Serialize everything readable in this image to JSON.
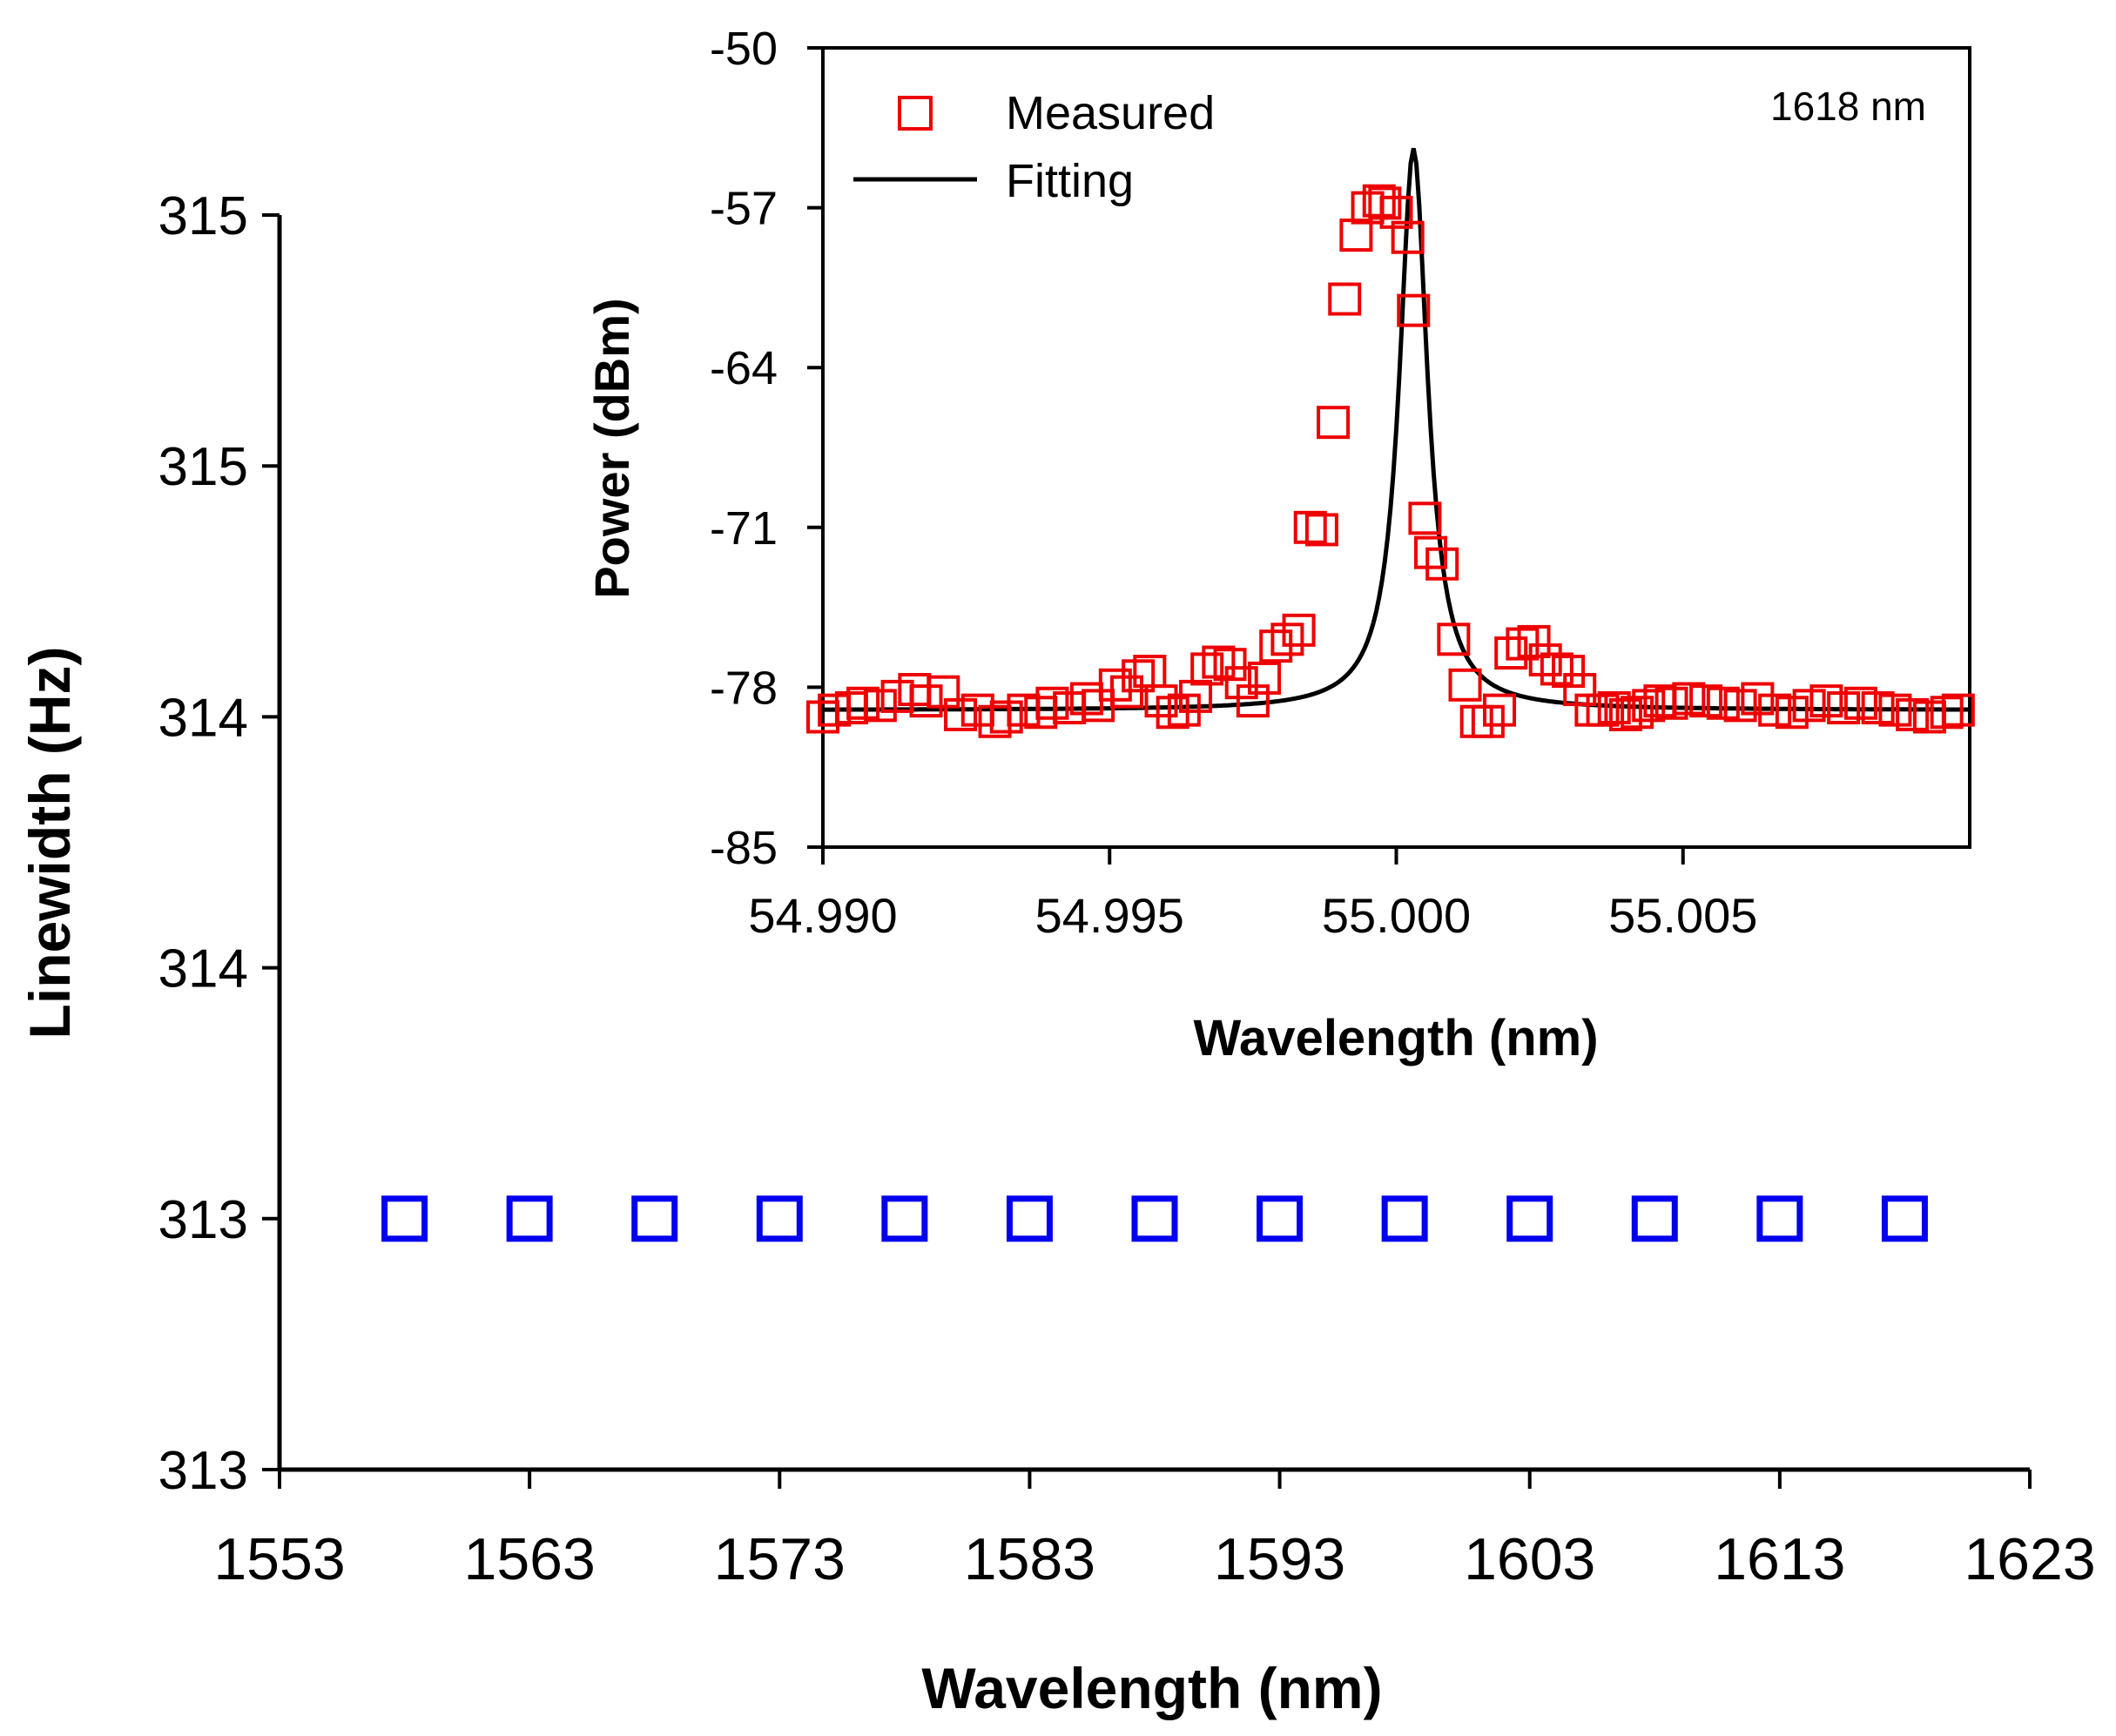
{
  "chart_data": [
    {
      "id": "main",
      "type": "scatter",
      "xlabel": "Wavelength (nm)",
      "ylabel": "Linewidth (Hz)",
      "xlim": [
        1553,
        1623
      ],
      "ylim": [
        313,
        315.5
      ],
      "x_ticks": [
        1553,
        1563,
        1573,
        1583,
        1593,
        1603,
        1613,
        1623
      ],
      "y_ticks": [
        313,
        313.5,
        314,
        314.5,
        315,
        315.5
      ],
      "y_tick_labels": [
        "313",
        "313",
        "314",
        "314",
        "315",
        "315"
      ],
      "series": [
        {
          "name": "Linewidth",
          "color": "#0000ee",
          "marker": "square",
          "x": [
            1558,
            1563,
            1568,
            1573,
            1578,
            1583,
            1588,
            1593,
            1598,
            1603,
            1608,
            1613,
            1618
          ],
          "y": [
            313.5,
            313.5,
            313.5,
            313.5,
            313.5,
            313.5,
            313.5,
            313.5,
            313.5,
            313.5,
            313.5,
            313.5,
            313.5
          ]
        }
      ]
    },
    {
      "id": "inset",
      "type": "scatter",
      "xlabel": "Wavelength (nm)",
      "ylabel": "Power (dBm)",
      "xlim": [
        54.99,
        55.01
      ],
      "ylim": [
        -85,
        -50
      ],
      "x_ticks": [
        54.99,
        54.995,
        55.0,
        55.005
      ],
      "x_tick_labels": [
        "54.990",
        "54.995",
        "55.000",
        "55.005"
      ],
      "y_ticks": [
        -85,
        -78,
        -71,
        -64,
        -57,
        -50
      ],
      "y_tick_labels": [
        "-85",
        "-78",
        "-71",
        "-64",
        "-57",
        "-50"
      ],
      "annotation": "1618 nm",
      "legend": {
        "placement": "top-left",
        "entries": [
          "Measured",
          "Fitting"
        ]
      },
      "series": [
        {
          "name": "Measured",
          "color": "#ee0000",
          "marker": "square",
          "x": [
            54.99,
            54.9902,
            54.9905,
            54.9907,
            54.991,
            54.9913,
            54.9916,
            54.9918,
            54.9921,
            54.9924,
            54.9927,
            54.993,
            54.9932,
            54.9935,
            54.9938,
            54.994,
            54.9943,
            54.9946,
            54.9948,
            54.9951,
            54.9953,
            54.9955,
            54.9957,
            54.9959,
            54.9961,
            54.9963,
            54.9965,
            54.9967,
            54.9969,
            54.9971,
            54.9973,
            54.9975,
            54.9977,
            54.9979,
            54.9981,
            54.9983,
            54.9985,
            54.9987,
            54.9989,
            54.9991,
            54.9993,
            54.9995,
            54.9997,
            54.9998,
            55.0,
            55.0002,
            55.0003,
            55.0005,
            55.0006,
            55.0008,
            55.001,
            55.0012,
            55.0014,
            55.0016,
            55.0018,
            55.002,
            55.0022,
            55.0024,
            55.0026,
            55.0028,
            55.003,
            55.0032,
            55.0034,
            55.0036,
            55.0038,
            55.004,
            55.0042,
            55.0044,
            55.0046,
            55.0048,
            55.0051,
            55.0054,
            55.0057,
            55.006,
            55.0063,
            55.0066,
            55.0069,
            55.0072,
            55.0075,
            55.0078,
            55.0081,
            55.0084,
            55.0087,
            55.009,
            55.0093,
            55.0096,
            55.0098
          ],
          "y": [
            -79.3,
            -79.0,
            -78.9,
            -78.7,
            -78.8,
            -78.4,
            -78.1,
            -78.6,
            -78.2,
            -79.2,
            -79.0,
            -79.5,
            -79.3,
            -79.0,
            -79.1,
            -78.7,
            -78.9,
            -78.5,
            -78.8,
            -77.9,
            -78.2,
            -77.5,
            -77.3,
            -78.6,
            -79.1,
            -79.0,
            -78.4,
            -77.2,
            -76.9,
            -77.0,
            -77.8,
            -78.6,
            -77.6,
            -76.2,
            -75.9,
            -75.5,
            -71.0,
            -71.1,
            -66.4,
            -61.0,
            -58.2,
            -57.0,
            -56.7,
            -56.8,
            -57.2,
            -58.3,
            -61.5,
            -70.6,
            -72.1,
            -72.6,
            -75.9,
            -77.9,
            -79.5,
            -79.5,
            -79.0,
            -76.5,
            -76.1,
            -76.0,
            -76.8,
            -77.2,
            -77.3,
            -78.1,
            -79.0,
            -79.0,
            -78.9,
            -79.2,
            -79.1,
            -78.8,
            -78.6,
            -78.7,
            -78.5,
            -78.6,
            -78.7,
            -78.8,
            -78.5,
            -79.0,
            -79.1,
            -78.8,
            -78.6,
            -78.9,
            -78.7,
            -78.9,
            -79.0,
            -79.2,
            -79.3,
            -79.1,
            -79.0
          ]
        },
        {
          "name": "Fitting",
          "color": "#000000",
          "model": "lorentzian",
          "baseline": -79.0,
          "peak": -54.4,
          "center": 55.0003,
          "half_width": 0.0003
        }
      ]
    }
  ]
}
